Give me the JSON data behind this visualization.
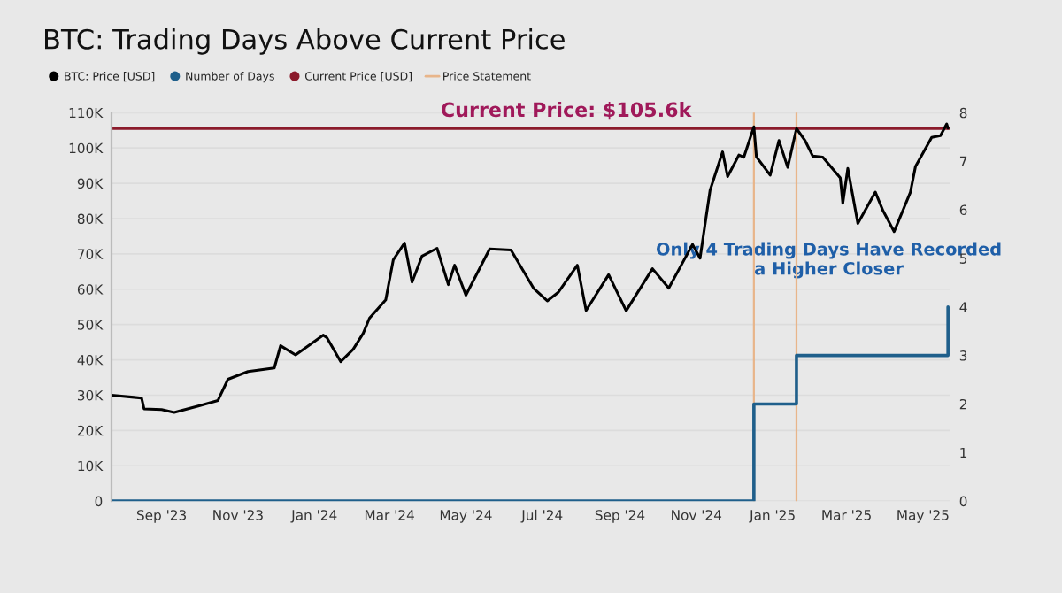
{
  "chart_data": {
    "type": "line",
    "title": "BTC: Trading Days Above Current Price",
    "x": [
      "2023-07-23",
      "2023-08-10",
      "2023-08-16",
      "2023-08-18",
      "2023-09-01",
      "2023-09-11",
      "2023-10-01",
      "2023-10-16",
      "2023-10-24",
      "2023-11-09",
      "2023-11-30",
      "2023-12-05",
      "2023-12-17",
      "2024-01-08",
      "2024-01-11",
      "2024-01-22",
      "2024-02-01",
      "2024-02-09",
      "2024-02-14",
      "2024-02-27",
      "2024-03-04",
      "2024-03-13",
      "2024-03-19",
      "2024-03-27",
      "2024-04-08",
      "2024-04-17",
      "2024-04-22",
      "2024-05-01",
      "2024-05-20",
      "2024-06-06",
      "2024-06-24",
      "2024-07-05",
      "2024-07-14",
      "2024-07-29",
      "2024-08-05",
      "2024-08-23",
      "2024-09-06",
      "2024-09-27",
      "2024-10-10",
      "2024-10-29",
      "2024-11-04",
      "2024-11-12",
      "2024-11-22",
      "2024-11-26",
      "2024-12-05",
      "2024-12-09",
      "2024-12-17",
      "2024-12-19",
      "2024-12-30",
      "2025-01-06",
      "2025-01-13",
      "2025-01-20",
      "2025-01-27",
      "2025-02-02",
      "2025-02-10",
      "2025-02-24",
      "2025-02-26",
      "2025-03-02",
      "2025-03-10",
      "2025-03-24",
      "2025-03-30",
      "2025-04-08",
      "2025-04-21",
      "2025-04-25",
      "2025-05-08",
      "2025-05-15",
      "2025-05-20",
      "2025-05-21"
    ],
    "series": [
      {
        "name": "BTC: Price [USD]",
        "color": "#000000",
        "values": [
          30000,
          29400,
          29200,
          26100,
          25900,
          25100,
          27000,
          28500,
          34500,
          36700,
          37700,
          44000,
          41400,
          47000,
          46300,
          39500,
          43000,
          47500,
          51800,
          57000,
          68300,
          73100,
          62000,
          69400,
          71600,
          61300,
          66800,
          58300,
          71400,
          71100,
          60300,
          56700,
          59200,
          66800,
          54000,
          64100,
          53900,
          65800,
          60300,
          72700,
          68800,
          88000,
          98900,
          91900,
          98000,
          97400,
          106000,
          97500,
          92300,
          102100,
          94500,
          105500,
          102000,
          97700,
          97400,
          91500,
          84300,
          94200,
          78600,
          87500,
          82300,
          76300,
          87500,
          94700,
          103000,
          103500,
          106800,
          105600
        ]
      },
      {
        "name": "Number of Days",
        "type": "step",
        "axis": "y2",
        "color": "#1f5f8b",
        "x": [
          "2023-07-23",
          "2024-12-17",
          "2025-01-20",
          "2025-05-21"
        ],
        "values": [
          0,
          2,
          3,
          4
        ]
      }
    ],
    "ref_lines": [
      {
        "axis": "y",
        "value": 105600,
        "label": "Current Price [USD]",
        "color": "#8b1a2b",
        "line_style": "solid"
      },
      {
        "axis": "x",
        "value": "2024-12-17",
        "label": "Price Statement",
        "color": "#e8b58a",
        "line_style": "solid"
      },
      {
        "axis": "x",
        "value": "2025-01-20",
        "color": "#e8b58a",
        "line_style": "solid"
      }
    ],
    "annotations": [
      {
        "text": "Current Price: $105.6k",
        "x": "2024-07-20",
        "y": 105600
      },
      "Only 4 Trading Days Have Recorded a Higher Closer"
    ],
    "xlim": [
      "2023-07-23",
      "2025-05-23"
    ],
    "xticks": [
      {
        "value": "2023-09-01",
        "label": "Sep '23"
      },
      {
        "value": "2023-11-01",
        "label": "Nov '23"
      },
      {
        "value": "2024-01-01",
        "label": "Jan '24"
      },
      {
        "value": "2024-03-01",
        "label": "Mar '24"
      },
      {
        "value": "2024-05-01",
        "label": "May '24"
      },
      {
        "value": "2024-07-01",
        "label": "Jul '24"
      },
      {
        "value": "2024-09-01",
        "label": "Sep '24"
      },
      {
        "value": "2024-11-01",
        "label": "Nov '24"
      },
      {
        "value": "2025-01-01",
        "label": "Jan '25"
      },
      {
        "value": "2025-03-01",
        "label": "Mar '25"
      },
      {
        "value": "2025-05-01",
        "label": "May '25"
      }
    ],
    "ylim": [
      0,
      110000
    ],
    "yticks": [
      0,
      {
        "value": 10000,
        "label": "10K"
      },
      {
        "value": 20000,
        "label": "20K"
      },
      {
        "value": 30000,
        "label": "30K"
      },
      {
        "value": 40000,
        "label": "40K"
      },
      {
        "value": 50000,
        "label": "50K"
      },
      {
        "value": 60000,
        "label": "60K"
      },
      {
        "value": 70000,
        "label": "70K"
      },
      {
        "value": 80000,
        "label": "80K"
      },
      {
        "value": 90000,
        "label": "90K"
      },
      {
        "value": 100000,
        "label": "100K"
      },
      {
        "value": 110000,
        "label": "110K"
      }
    ],
    "y2lim": [
      0,
      8
    ],
    "y2ticks": [
      0,
      1,
      2,
      3,
      4,
      5,
      6,
      7,
      8
    ],
    "grid": "y",
    "legend": "top left",
    "marker": "none",
    "line_style": "solid"
  }
}
